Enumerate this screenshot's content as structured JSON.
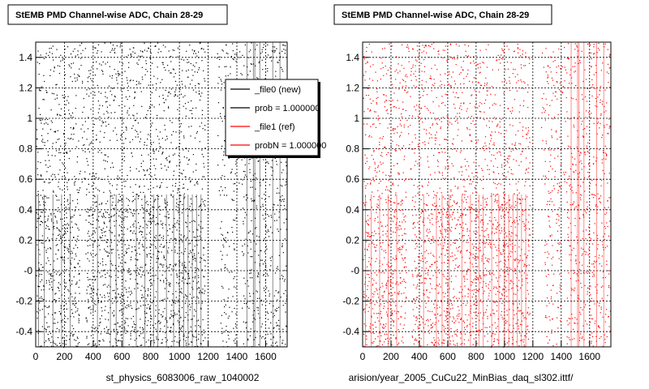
{
  "chart_data": [
    {
      "type": "scatter",
      "title": "StEMB PMD Channel-wise ADC, Chain 28-29",
      "xlabel": "st_physics_6083006_raw_1040002",
      "ylabel": "",
      "xlim": [
        0,
        1750
      ],
      "ylim": [
        -0.5,
        1.5
      ],
      "x_ticks": [
        "0",
        "200",
        "400",
        "600",
        "800",
        "1000",
        "1200",
        "1400",
        "1600"
      ],
      "y_ticks": [
        "-0.4",
        "-0.2",
        "-0",
        "0.2",
        "0.4",
        "0.6",
        "0.8",
        "1",
        "1.2",
        "1.4"
      ],
      "grid": true,
      "marker_color": "#000000",
      "series": [
        {
          "name": "_file0 (new)",
          "color": "#000000"
        }
      ],
      "legend": {
        "position": "top-right",
        "entries": [
          {
            "label": "_file0 (new)",
            "color": "#000000"
          },
          {
            "label": "prob = 1.000000",
            "color": "#000000"
          },
          {
            "label": "_file1 (ref)",
            "color": "#ff0000"
          },
          {
            "label": "probN = 1.000000",
            "color": "#ff0000"
          }
        ]
      }
    },
    {
      "type": "scatter",
      "title": "StEMB PMD Channel-wise ADC, Chain 28-29",
      "xlabel": "arision/year_2005_CuCu22_MinBias_daq_sl302.ittf/",
      "ylabel": "",
      "xlim": [
        0,
        1750
      ],
      "ylim": [
        -0.5,
        1.5
      ],
      "x_ticks": [
        "0",
        "200",
        "400",
        "600",
        "800",
        "1000",
        "1200",
        "1400",
        "1600"
      ],
      "y_ticks": [
        "-0.4",
        "-0.2",
        "-0",
        "0.2",
        "0.4",
        "0.6",
        "0.8",
        "1",
        "1.2",
        "1.4"
      ],
      "grid": true,
      "marker_color": "#ff0000",
      "series": [
        {
          "name": "_file1 (ref)",
          "color": "#ff0000"
        }
      ]
    }
  ]
}
